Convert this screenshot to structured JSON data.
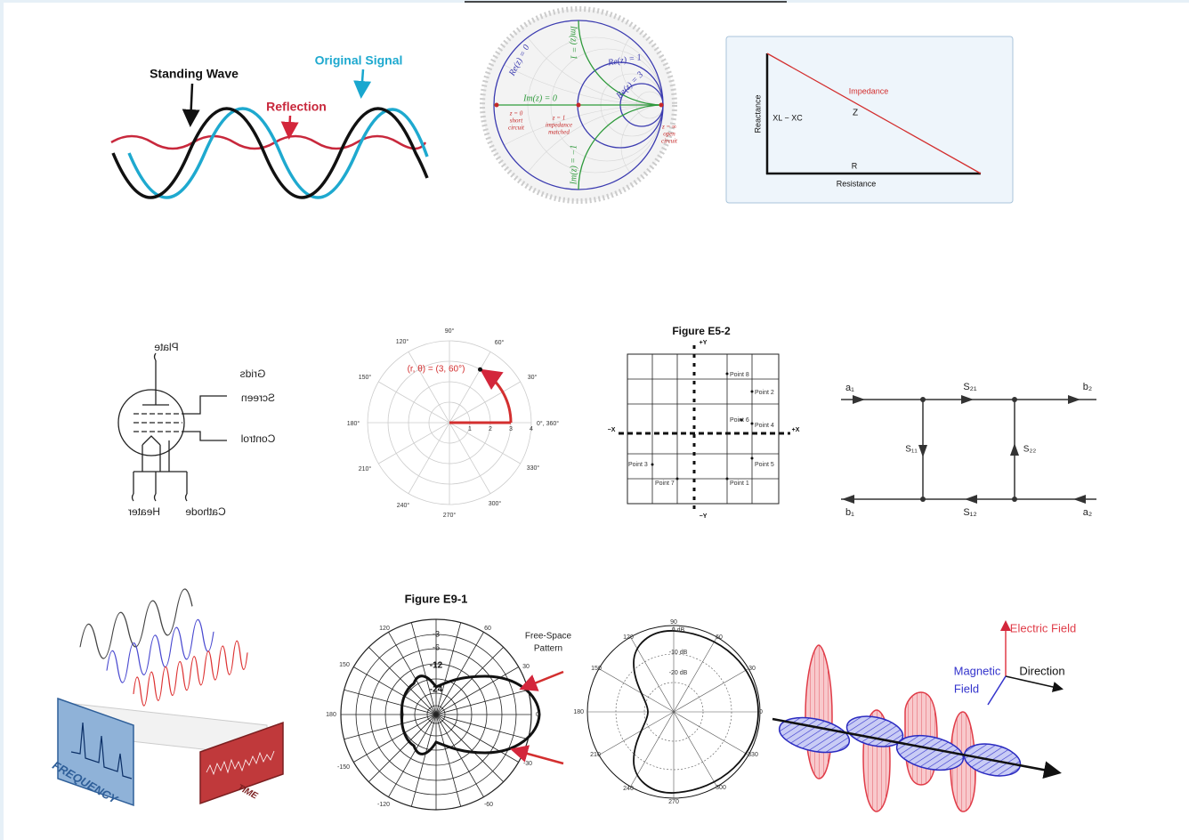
{
  "standing_wave": {
    "standing_wave": "Standing Wave",
    "original_signal": "Original Signal",
    "reflection": "Reflection"
  },
  "smith_chart": {
    "re0": "Re(z) = 0",
    "im1": "Im(z) = 1",
    "re1": "Re(z) = 1",
    "im0": "Im(z) = 0",
    "re3": "Re(z) = 3",
    "im_neg1": "Im(z) = −1",
    "short": [
      "z = 0",
      "short",
      "circuit"
    ],
    "matched": [
      "z = 1",
      "impedance",
      "matched"
    ],
    "open": [
      "z = ∞",
      "open",
      "circuit"
    ]
  },
  "impedance_triangle": {
    "impedance": "Impedance",
    "z": "Z",
    "reactance": "Reactance",
    "xl_xc": "XL − XC",
    "r": "R",
    "resistance": "Resistance"
  },
  "vacuum_tube": {
    "plate": "Plate",
    "grids": "Grids",
    "screen": "Screen",
    "control": "Control",
    "heater": "Heater",
    "cathode": "Cathode"
  },
  "polar_plot": {
    "point": "(r, θ) = (3, 60°)",
    "angles": [
      "90°",
      "60°",
      "30°",
      "0°, 360°",
      "330°",
      "300°",
      "270°",
      "240°",
      "210°",
      "180°",
      "150°",
      "120°"
    ],
    "radii": [
      "1",
      "2",
      "3",
      "4"
    ]
  },
  "figure_e5_2": {
    "title": "Figure E5-2",
    "axes": [
      "+Y",
      "−Y",
      "−X",
      "+X"
    ],
    "points": [
      "Point 1",
      "Point 2",
      "Point 3",
      "Point 4",
      "Point 5",
      "Point 6",
      "Point 7",
      "Point 8"
    ]
  },
  "s_parameters": {
    "a1": "a₁",
    "s21": "S₂₁",
    "b2": "b₂",
    "s11": "S₁₁",
    "s22": "S₂₂",
    "b1": "b₁",
    "s12": "S₁₂",
    "a2": "a₂"
  },
  "frequency_time": {
    "frequency": "FREQUENCY",
    "time": "TIME"
  },
  "figure_e9_1": {
    "title": "Figure E9-1",
    "pattern": [
      "Free-Space",
      "Pattern"
    ],
    "angles": [
      "120",
      "60",
      "150",
      "30",
      "180",
      "0",
      "-150",
      "-30",
      "-120",
      "-60"
    ],
    "rings": [
      "-3",
      "-6",
      "-12",
      "-24"
    ]
  },
  "antenna_pattern": {
    "angles": [
      "90",
      "60",
      "30",
      "0",
      "330",
      "300",
      "270",
      "240",
      "210",
      "180",
      "150",
      "120"
    ],
    "rings": [
      "0 dB",
      "-10 dB",
      "-20 dB"
    ]
  },
  "em_wave": {
    "electric_field": "Electric Field",
    "magnetic_field": [
      "Magnetic",
      "Field"
    ],
    "direction": "Direction"
  }
}
